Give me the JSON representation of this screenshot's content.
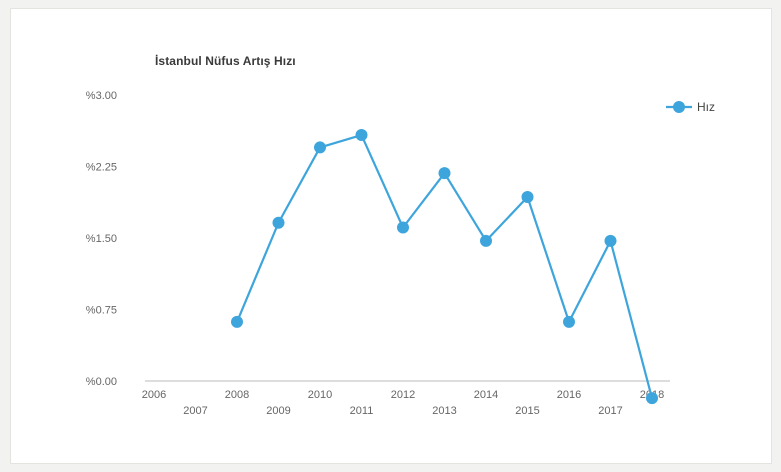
{
  "chart_data": {
    "type": "line",
    "title": "İstanbul Nüfus Artış Hızı",
    "x": [
      "2006",
      "2007",
      "2008",
      "2009",
      "2010",
      "2011",
      "2012",
      "2013",
      "2014",
      "2015",
      "2016",
      "2017",
      "2018"
    ],
    "series": [
      {
        "name": "Hız",
        "values": [
          null,
          null,
          0.62,
          1.66,
          2.45,
          2.58,
          1.61,
          2.18,
          1.47,
          1.93,
          0.62,
          1.47,
          -0.18
        ]
      }
    ],
    "y_tick_labels": [
      "%0.00",
      "%0.75",
      "%1.50",
      "%2.25",
      "%3.00"
    ],
    "y_tick_values": [
      0,
      0.75,
      1.5,
      2.25,
      3.0
    ],
    "ylim": [
      0,
      3.0
    ],
    "grid": false,
    "legend_position": "top-right",
    "colors": {
      "series": "#3ea5dc",
      "axis": "#bbbbbb"
    }
  }
}
